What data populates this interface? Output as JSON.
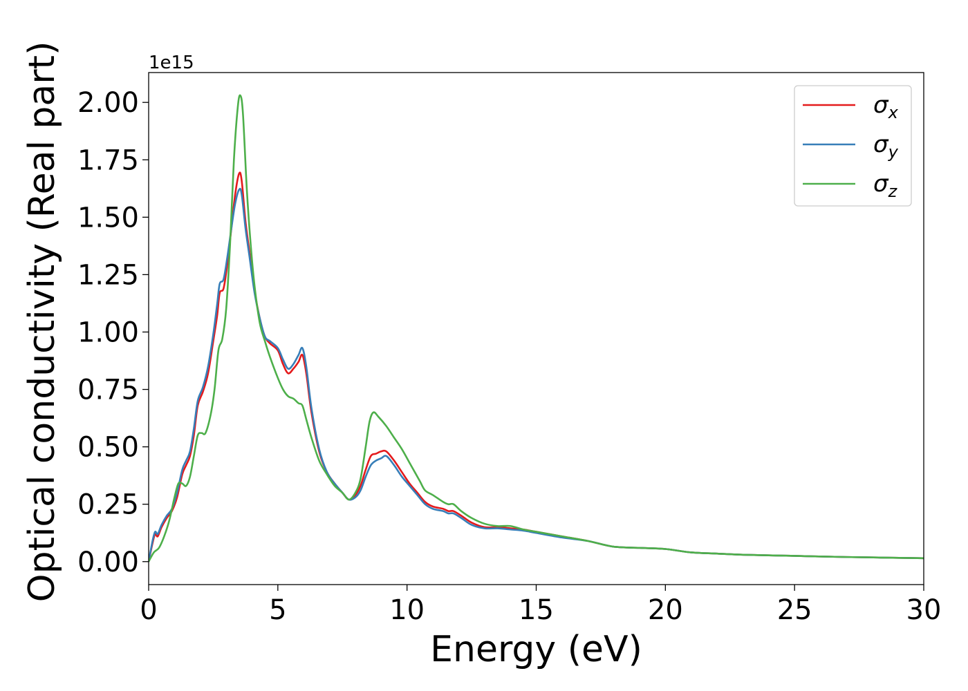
{
  "chart_data": {
    "type": "line",
    "xlabel": "Energy (eV)",
    "ylabel": "Optical conductivity (Real part)",
    "y_offset_label": "1e15",
    "xlim": [
      0,
      30
    ],
    "ylim": [
      -0.1,
      2.13
    ],
    "xticks": [
      0,
      5,
      10,
      15,
      20,
      25,
      30
    ],
    "xtick_labels": [
      "0",
      "5",
      "10",
      "15",
      "20",
      "25",
      "30"
    ],
    "yticks": [
      0.0,
      0.25,
      0.5,
      0.75,
      1.0,
      1.25,
      1.5,
      1.75,
      2.0
    ],
    "ytick_labels": [
      "0.00",
      "0.25",
      "0.50",
      "0.75",
      "1.00",
      "1.25",
      "1.50",
      "1.75",
      "2.00"
    ],
    "grid": false,
    "legend_position": "top-right",
    "series": [
      {
        "name": "σx",
        "symbol": "σ",
        "subscript": "x",
        "color": "#e41a1c",
        "points": [
          [
            0,
            0.0
          ],
          [
            0.15,
            0.08
          ],
          [
            0.25,
            0.12
          ],
          [
            0.35,
            0.11
          ],
          [
            0.5,
            0.15
          ],
          [
            0.7,
            0.19
          ],
          [
            0.9,
            0.22
          ],
          [
            1.1,
            0.28
          ],
          [
            1.3,
            0.38
          ],
          [
            1.45,
            0.42
          ],
          [
            1.6,
            0.46
          ],
          [
            1.75,
            0.55
          ],
          [
            1.9,
            0.68
          ],
          [
            2.1,
            0.74
          ],
          [
            2.3,
            0.82
          ],
          [
            2.5,
            0.96
          ],
          [
            2.65,
            1.07
          ],
          [
            2.75,
            1.17
          ],
          [
            2.9,
            1.19
          ],
          [
            3.05,
            1.3
          ],
          [
            3.2,
            1.45
          ],
          [
            3.35,
            1.6
          ],
          [
            3.5,
            1.69
          ],
          [
            3.6,
            1.66
          ],
          [
            3.75,
            1.48
          ],
          [
            3.9,
            1.35
          ],
          [
            4.1,
            1.18
          ],
          [
            4.3,
            1.06
          ],
          [
            4.5,
            0.98
          ],
          [
            4.7,
            0.95
          ],
          [
            5.0,
            0.92
          ],
          [
            5.2,
            0.86
          ],
          [
            5.4,
            0.82
          ],
          [
            5.6,
            0.84
          ],
          [
            5.8,
            0.87
          ],
          [
            5.95,
            0.9
          ],
          [
            6.1,
            0.82
          ],
          [
            6.3,
            0.65
          ],
          [
            6.6,
            0.48
          ],
          [
            6.9,
            0.39
          ],
          [
            7.2,
            0.34
          ],
          [
            7.5,
            0.3
          ],
          [
            7.75,
            0.27
          ],
          [
            8.0,
            0.29
          ],
          [
            8.2,
            0.33
          ],
          [
            8.4,
            0.4
          ],
          [
            8.6,
            0.46
          ],
          [
            8.8,
            0.47
          ],
          [
            9.0,
            0.48
          ],
          [
            9.2,
            0.48
          ],
          [
            9.5,
            0.44
          ],
          [
            9.8,
            0.39
          ],
          [
            10.1,
            0.34
          ],
          [
            10.4,
            0.3
          ],
          [
            10.7,
            0.26
          ],
          [
            11.0,
            0.24
          ],
          [
            11.4,
            0.23
          ],
          [
            11.6,
            0.22
          ],
          [
            11.8,
            0.22
          ],
          [
            12.1,
            0.2
          ],
          [
            12.5,
            0.17
          ],
          [
            13.0,
            0.15
          ],
          [
            13.5,
            0.15
          ],
          [
            14.0,
            0.145
          ],
          [
            14.5,
            0.14
          ],
          [
            15.0,
            0.13
          ],
          [
            16.0,
            0.11
          ],
          [
            17.0,
            0.09
          ],
          [
            18.0,
            0.065
          ],
          [
            19.0,
            0.06
          ],
          [
            20.0,
            0.055
          ],
          [
            21.0,
            0.04
          ],
          [
            22.0,
            0.035
          ],
          [
            23.0,
            0.03
          ],
          [
            25.0,
            0.025
          ],
          [
            27.0,
            0.02
          ],
          [
            30.0,
            0.015
          ]
        ]
      },
      {
        "name": "σy",
        "symbol": "σ",
        "subscript": "y",
        "color": "#377eb8",
        "points": [
          [
            0,
            0.0
          ],
          [
            0.15,
            0.09
          ],
          [
            0.25,
            0.13
          ],
          [
            0.35,
            0.12
          ],
          [
            0.5,
            0.16
          ],
          [
            0.7,
            0.2
          ],
          [
            0.9,
            0.23
          ],
          [
            1.1,
            0.3
          ],
          [
            1.3,
            0.4
          ],
          [
            1.45,
            0.44
          ],
          [
            1.6,
            0.48
          ],
          [
            1.75,
            0.58
          ],
          [
            1.9,
            0.7
          ],
          [
            2.1,
            0.76
          ],
          [
            2.3,
            0.85
          ],
          [
            2.5,
            0.99
          ],
          [
            2.65,
            1.12
          ],
          [
            2.75,
            1.21
          ],
          [
            2.9,
            1.23
          ],
          [
            3.05,
            1.33
          ],
          [
            3.2,
            1.45
          ],
          [
            3.35,
            1.56
          ],
          [
            3.5,
            1.62
          ],
          [
            3.6,
            1.6
          ],
          [
            3.75,
            1.45
          ],
          [
            3.9,
            1.33
          ],
          [
            4.1,
            1.17
          ],
          [
            4.3,
            1.06
          ],
          [
            4.5,
            0.98
          ],
          [
            4.7,
            0.96
          ],
          [
            5.0,
            0.93
          ],
          [
            5.2,
            0.88
          ],
          [
            5.4,
            0.84
          ],
          [
            5.6,
            0.86
          ],
          [
            5.8,
            0.9
          ],
          [
            5.95,
            0.93
          ],
          [
            6.1,
            0.85
          ],
          [
            6.3,
            0.67
          ],
          [
            6.6,
            0.49
          ],
          [
            6.9,
            0.39
          ],
          [
            7.2,
            0.34
          ],
          [
            7.5,
            0.3
          ],
          [
            7.75,
            0.27
          ],
          [
            8.0,
            0.28
          ],
          [
            8.2,
            0.31
          ],
          [
            8.4,
            0.37
          ],
          [
            8.6,
            0.42
          ],
          [
            8.8,
            0.44
          ],
          [
            9.0,
            0.45
          ],
          [
            9.2,
            0.46
          ],
          [
            9.5,
            0.42
          ],
          [
            9.8,
            0.37
          ],
          [
            10.1,
            0.33
          ],
          [
            10.4,
            0.29
          ],
          [
            10.7,
            0.25
          ],
          [
            11.0,
            0.23
          ],
          [
            11.4,
            0.22
          ],
          [
            11.6,
            0.21
          ],
          [
            11.8,
            0.21
          ],
          [
            12.1,
            0.19
          ],
          [
            12.5,
            0.16
          ],
          [
            13.0,
            0.145
          ],
          [
            13.5,
            0.145
          ],
          [
            14.0,
            0.14
          ],
          [
            14.5,
            0.135
          ],
          [
            15.0,
            0.125
          ],
          [
            16.0,
            0.105
          ],
          [
            17.0,
            0.09
          ],
          [
            18.0,
            0.065
          ],
          [
            19.0,
            0.06
          ],
          [
            20.0,
            0.055
          ],
          [
            21.0,
            0.04
          ],
          [
            22.0,
            0.035
          ],
          [
            23.0,
            0.03
          ],
          [
            25.0,
            0.025
          ],
          [
            27.0,
            0.02
          ],
          [
            30.0,
            0.015
          ]
        ]
      },
      {
        "name": "σz",
        "symbol": "σ",
        "subscript": "z",
        "color": "#4daf4a",
        "points": [
          [
            0,
            0.0
          ],
          [
            0.2,
            0.04
          ],
          [
            0.4,
            0.06
          ],
          [
            0.6,
            0.11
          ],
          [
            0.8,
            0.18
          ],
          [
            1.0,
            0.28
          ],
          [
            1.15,
            0.34
          ],
          [
            1.3,
            0.34
          ],
          [
            1.45,
            0.33
          ],
          [
            1.6,
            0.37
          ],
          [
            1.75,
            0.46
          ],
          [
            1.9,
            0.55
          ],
          [
            2.05,
            0.56
          ],
          [
            2.2,
            0.56
          ],
          [
            2.4,
            0.64
          ],
          [
            2.55,
            0.75
          ],
          [
            2.7,
            0.92
          ],
          [
            2.85,
            0.97
          ],
          [
            3.0,
            1.1
          ],
          [
            3.15,
            1.38
          ],
          [
            3.3,
            1.75
          ],
          [
            3.45,
            1.98
          ],
          [
            3.55,
            2.03
          ],
          [
            3.65,
            1.95
          ],
          [
            3.8,
            1.62
          ],
          [
            3.95,
            1.38
          ],
          [
            4.1,
            1.2
          ],
          [
            4.3,
            1.04
          ],
          [
            4.5,
            0.96
          ],
          [
            4.7,
            0.89
          ],
          [
            5.0,
            0.8
          ],
          [
            5.2,
            0.75
          ],
          [
            5.4,
            0.72
          ],
          [
            5.6,
            0.71
          ],
          [
            5.8,
            0.69
          ],
          [
            5.95,
            0.68
          ],
          [
            6.1,
            0.62
          ],
          [
            6.3,
            0.54
          ],
          [
            6.6,
            0.44
          ],
          [
            6.9,
            0.38
          ],
          [
            7.2,
            0.33
          ],
          [
            7.5,
            0.3
          ],
          [
            7.75,
            0.27
          ],
          [
            8.0,
            0.3
          ],
          [
            8.2,
            0.36
          ],
          [
            8.4,
            0.5
          ],
          [
            8.55,
            0.61
          ],
          [
            8.7,
            0.65
          ],
          [
            8.9,
            0.63
          ],
          [
            9.2,
            0.59
          ],
          [
            9.5,
            0.54
          ],
          [
            9.8,
            0.49
          ],
          [
            10.1,
            0.43
          ],
          [
            10.3,
            0.39
          ],
          [
            10.5,
            0.35
          ],
          [
            10.7,
            0.31
          ],
          [
            11.0,
            0.29
          ],
          [
            11.4,
            0.26
          ],
          [
            11.6,
            0.25
          ],
          [
            11.8,
            0.25
          ],
          [
            12.1,
            0.22
          ],
          [
            12.5,
            0.19
          ],
          [
            13.0,
            0.165
          ],
          [
            13.5,
            0.155
          ],
          [
            14.0,
            0.155
          ],
          [
            14.5,
            0.14
          ],
          [
            15.0,
            0.13
          ],
          [
            16.0,
            0.11
          ],
          [
            17.0,
            0.09
          ],
          [
            18.0,
            0.065
          ],
          [
            19.0,
            0.06
          ],
          [
            20.0,
            0.055
          ],
          [
            21.0,
            0.04
          ],
          [
            22.0,
            0.035
          ],
          [
            23.0,
            0.03
          ],
          [
            25.0,
            0.025
          ],
          [
            27.0,
            0.02
          ],
          [
            30.0,
            0.015
          ]
        ]
      }
    ]
  }
}
